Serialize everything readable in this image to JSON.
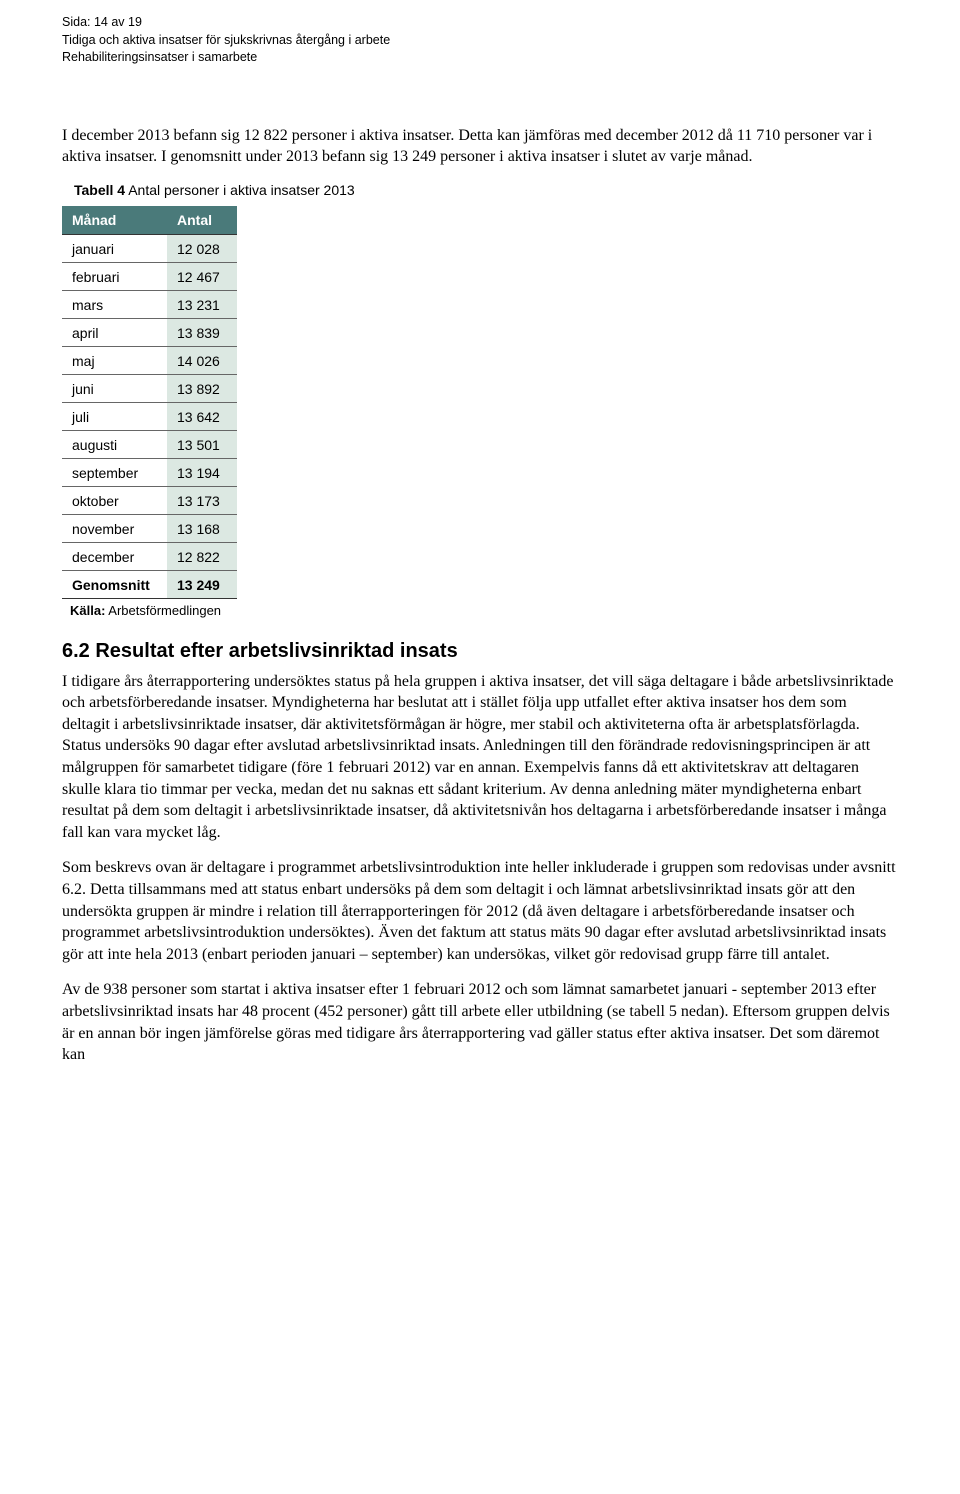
{
  "meta": {
    "line1": "Sida: 14 av 19",
    "line2": "Tidiga och aktiva insatser för sjukskrivnas återgång i arbete",
    "line3": "Rehabiliteringsinsatser i samarbete"
  },
  "intro": {
    "p1": "I december 2013 befann sig 12 822 personer i aktiva insatser. Detta kan jämföras med december 2012 då 11 710 personer var i aktiva insatser. I genomsnitt under 2013 befann sig 13 249 personer i aktiva insatser i slutet av varje månad."
  },
  "table": {
    "caption_bold": "Tabell 4",
    "caption_rest": " Antal personer i aktiva insatser 2013",
    "header_month": "Månad",
    "header_value": "Antal",
    "rows": [
      {
        "month": "januari",
        "value": "12 028"
      },
      {
        "month": "februari",
        "value": "12 467"
      },
      {
        "month": "mars",
        "value": "13 231"
      },
      {
        "month": "april",
        "value": "13 839"
      },
      {
        "month": "maj",
        "value": "14 026"
      },
      {
        "month": "juni",
        "value": "13 892"
      },
      {
        "month": "juli",
        "value": "13 642"
      },
      {
        "month": "augusti",
        "value": "13 501"
      },
      {
        "month": "september",
        "value": "13 194"
      },
      {
        "month": "oktober",
        "value": "13 173"
      },
      {
        "month": "november",
        "value": "13 168"
      },
      {
        "month": "december",
        "value": "12 822"
      }
    ],
    "summary": {
      "month": "Genomsnitt",
      "value": "13 249"
    },
    "source_bold": "Källa:",
    "source_rest": " Arbetsförmedlingen",
    "colors": {
      "header_bg": "#4a7a7a",
      "header_text": "#ffffff",
      "value_bg": "#dce8e2",
      "month_bg": "#ffffff",
      "border": "#666666"
    }
  },
  "section": {
    "heading": "6.2 Resultat efter arbetslivsinriktad insats",
    "p1": "I tidigare års återrapportering undersöktes status på hela gruppen i aktiva insatser, det vill säga deltagare i både arbetslivsinriktade och arbetsförberedande insatser. Myndigheterna har beslutat att i stället följa upp utfallet efter aktiva insatser hos dem som deltagit i arbetslivsinriktade insatser, där aktivitetsförmågan är högre, mer stabil och aktiviteterna ofta är arbetsplatsförlagda. Status undersöks 90 dagar efter avslutad arbetslivsinriktad insats. Anledningen till den förändrade redovisningsprincipen är att målgruppen för samarbetet tidigare (före 1 februari 2012) var en annan. Exempelvis fanns då ett aktivitetskrav att deltagaren skulle klara tio timmar per vecka, medan det nu saknas ett sådant kriterium. Av denna anledning mäter myndigheterna enbart resultat på dem som deltagit i arbetslivsinriktade insatser, då aktivitetsnivån hos deltagarna i arbetsförberedande insatser i många fall kan vara mycket låg.",
    "p2": "Som beskrevs ovan är deltagare i programmet arbetslivsintroduktion inte heller inkluderade i gruppen som redovisas under avsnitt 6.2. Detta tillsammans med att status enbart undersöks på dem som deltagit i och lämnat arbetslivsinriktad insats gör att den undersökta gruppen är mindre i relation till återrapporteringen för 2012 (då även deltagare i arbetsförberedande insatser och programmet arbetslivsintroduktion undersöktes). Även det faktum att status mäts 90 dagar efter avslutad arbetslivsinriktad insats gör att inte hela 2013 (enbart perioden januari – september) kan undersökas, vilket gör redovisad grupp färre till antalet.",
    "p3": "Av de 938 personer som startat i aktiva insatser efter 1 februari 2012 och som lämnat samarbetet januari - september 2013 efter arbetslivsinriktad insats har 48 procent (452 personer) gått till arbete eller utbildning (se tabell 5 nedan). Eftersom gruppen delvis är en annan bör ingen jämförelse göras med tidigare års återrapportering vad gäller status efter aktiva insatser. Det som däremot kan"
  }
}
